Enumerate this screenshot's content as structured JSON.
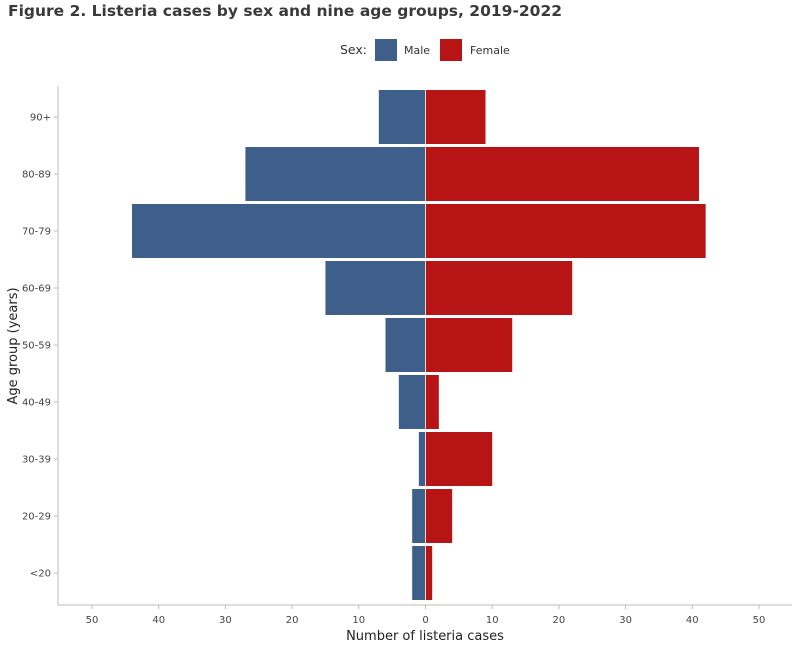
{
  "chart_data": {
    "type": "bar",
    "orientation": "horizontal",
    "layout": "population-pyramid",
    "title": "Figure 2. Listeria cases by sex and nine age groups, 2019-2022",
    "xlabel": "Number of listeria cases",
    "ylabel": "Age group (years)",
    "categories": [
      "<20",
      "20-29",
      "30-39",
      "40-49",
      "50-59",
      "60-69",
      "70-79",
      "80-89",
      "90+"
    ],
    "legend_title": "Sex:",
    "legend_position": "top",
    "series": [
      {
        "name": "Male",
        "color": "#3d5f89",
        "direction": "left",
        "values": [
          2,
          2,
          1,
          4,
          6,
          15,
          44,
          27,
          7
        ]
      },
      {
        "name": "Female",
        "color": "#b71515",
        "direction": "right",
        "values": [
          1,
          4,
          10,
          2,
          13,
          22,
          42,
          41,
          9
        ]
      }
    ],
    "xticks": [
      -50,
      -40,
      -30,
      -20,
      -10,
      0,
      10,
      20,
      30,
      40,
      50
    ],
    "xtick_labels": [
      "50",
      "40",
      "30",
      "20",
      "10",
      "0",
      "10",
      "20",
      "30",
      "40",
      "50"
    ],
    "xlim": [
      -55,
      55
    ],
    "grid": false
  }
}
